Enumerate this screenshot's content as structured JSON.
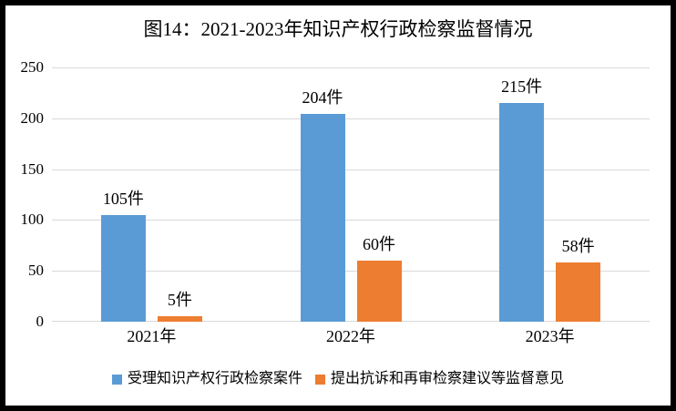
{
  "window": {
    "border_color": "#000000",
    "background_color": "#ffffff"
  },
  "chart_data": {
    "type": "bar",
    "title": "图14：2021-2023年知识产权行政检察监督情况",
    "categories": [
      "2021年",
      "2022年",
      "2023年"
    ],
    "series": [
      {
        "name": "受理知识产权行政检察案件",
        "color": "#5B9BD5",
        "values": [
          105,
          204,
          215
        ],
        "value_labels": [
          "105件",
          "204件",
          "215件"
        ]
      },
      {
        "name": "提出抗诉和再审检察建议等监督意见",
        "color": "#ED7D31",
        "values": [
          5,
          60,
          58
        ],
        "value_labels": [
          "5件",
          "60件",
          "58件"
        ]
      }
    ],
    "unit": "件",
    "xlabel": "",
    "ylabel": "",
    "ylim": [
      0,
      250
    ],
    "yticks": [
      "0",
      "50",
      "100",
      "150",
      "200",
      "250"
    ],
    "grid": "horizontal",
    "gridline_color": "#d9d9d9",
    "legend_position": "bottom"
  }
}
